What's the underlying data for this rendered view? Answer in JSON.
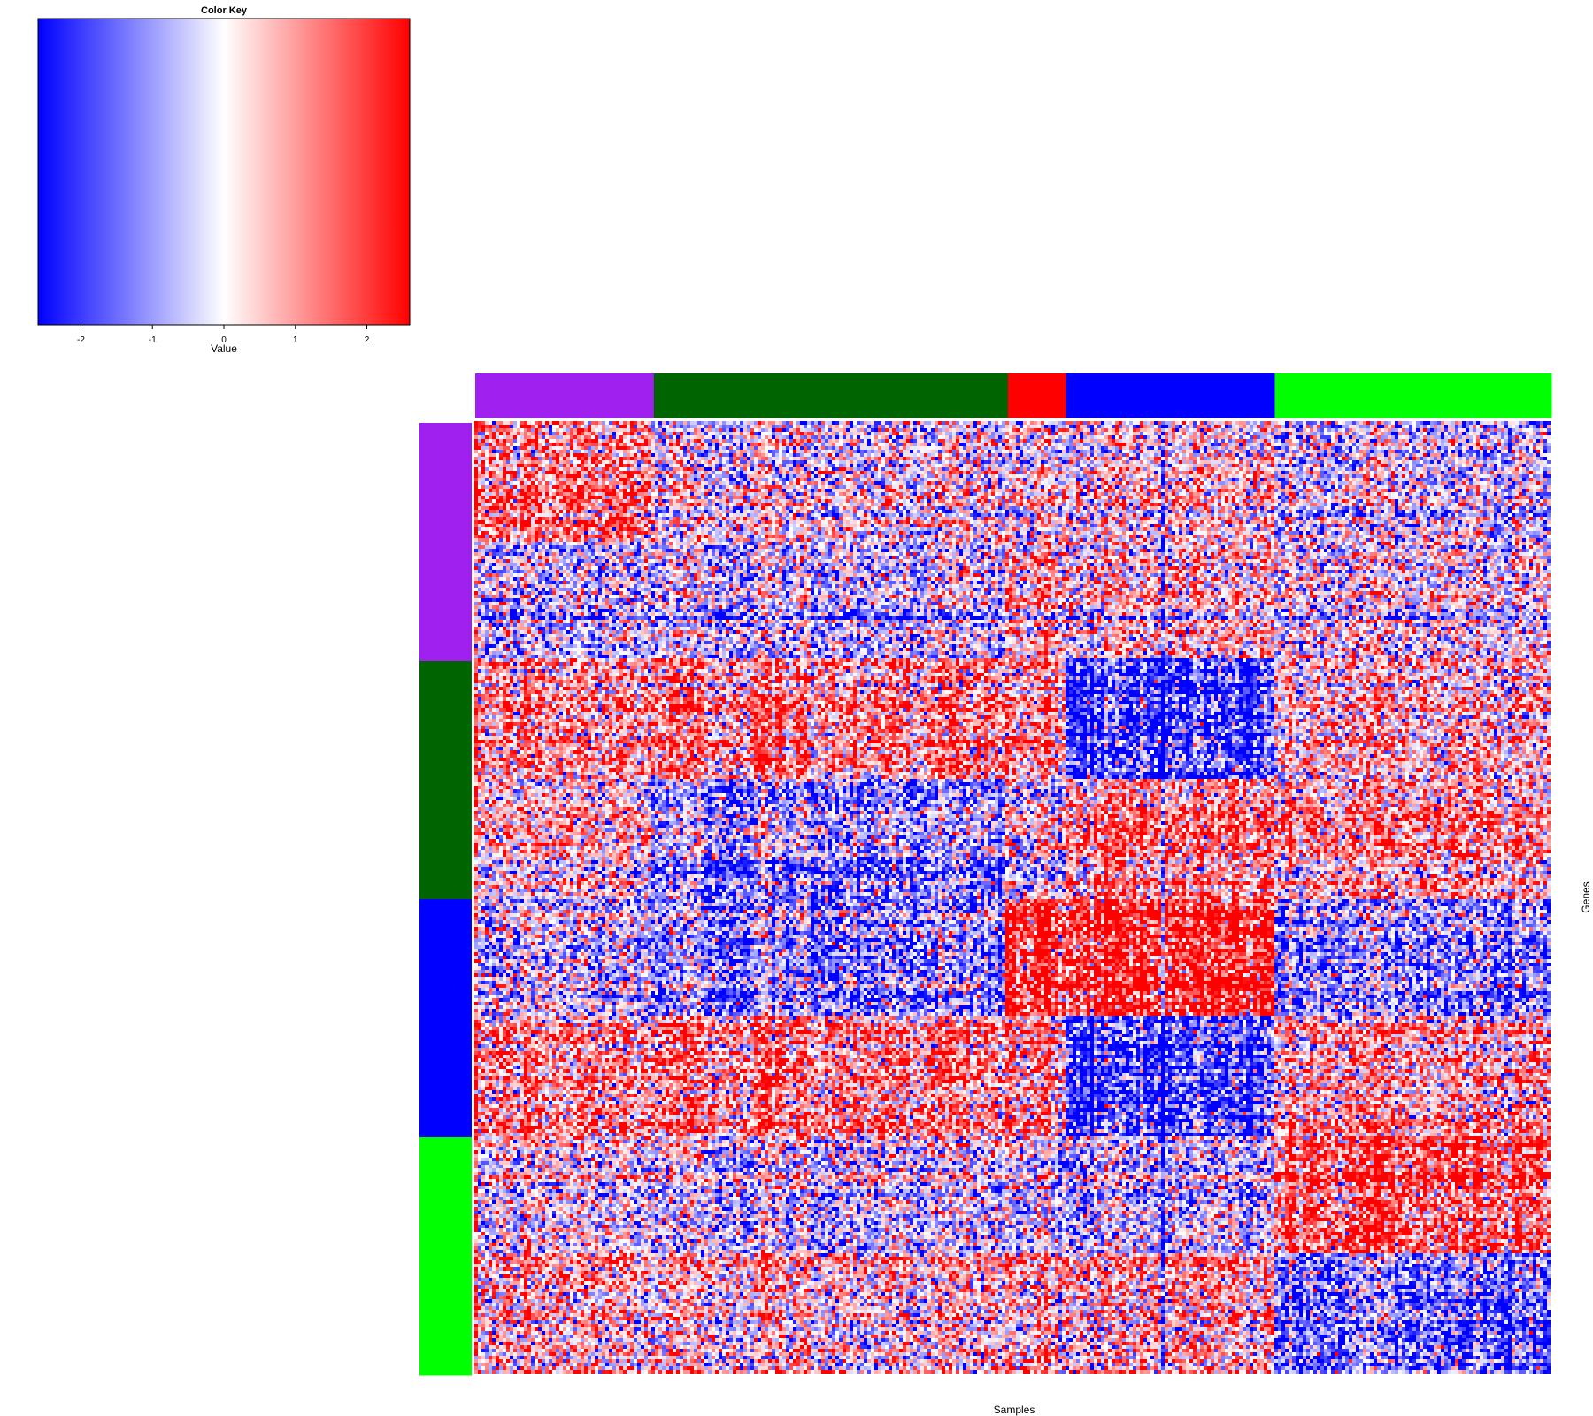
{
  "chart_data": {
    "type": "heatmap",
    "xlabel": "Samples",
    "ylabel": "Genes",
    "color_key": {
      "title": "Color Key",
      "xlabel": "Value",
      "range": [
        -2.6,
        2.6
      ],
      "ticks": [
        -2,
        -1,
        0,
        1,
        2
      ],
      "tick_labels": [
        "-2",
        "-1",
        "0",
        "1",
        "2"
      ],
      "colors": {
        "low": "#0000ff",
        "mid": "#ffffff",
        "high": "#ff0000"
      }
    },
    "column_groups": [
      {
        "name": "purple",
        "color": "#a020f0",
        "fraction": 0.166
      },
      {
        "name": "darkgreen",
        "color": "#006400",
        "fraction": 0.329
      },
      {
        "name": "red",
        "color": "#ff0000",
        "fraction": 0.054
      },
      {
        "name": "blue",
        "color": "#0000ff",
        "fraction": 0.194
      },
      {
        "name": "green",
        "color": "#00ff00",
        "fraction": 0.257
      }
    ],
    "row_groups": [
      {
        "name": "purple",
        "color": "#a020f0",
        "fraction": 0.25
      },
      {
        "name": "darkgreen",
        "color": "#006400",
        "fraction": 0.25
      },
      {
        "name": "blue",
        "color": "#0000ff",
        "fraction": 0.25
      },
      {
        "name": "green",
        "color": "#00ff00",
        "fraction": 0.25
      }
    ],
    "row_blocks": [
      {
        "fraction": 0.125,
        "mean_by_column_group": [
          0.9,
          0.0,
          0.0,
          0.2,
          -0.3
        ]
      },
      {
        "fraction": 0.125,
        "mean_by_column_group": [
          -0.3,
          -0.2,
          0.5,
          0.4,
          0.1
        ]
      },
      {
        "fraction": 0.125,
        "mean_by_column_group": [
          0.7,
          0.9,
          0.7,
          -1.6,
          0.4
        ]
      },
      {
        "fraction": 0.125,
        "mean_by_column_group": [
          0.2,
          -0.8,
          -0.2,
          0.9,
          0.7
        ]
      },
      {
        "fraction": 0.125,
        "mean_by_column_group": [
          -0.5,
          -0.9,
          1.6,
          1.8,
          -0.9
        ]
      },
      {
        "fraction": 0.125,
        "mean_by_column_group": [
          0.7,
          0.9,
          0.7,
          -1.6,
          0.6
        ]
      },
      {
        "fraction": 0.125,
        "mean_by_column_group": [
          -0.1,
          -0.3,
          -0.5,
          -0.5,
          1.3
        ]
      },
      {
        "fraction": 0.125,
        "mean_by_column_group": [
          0.5,
          0.4,
          0.5,
          0.6,
          -1.0
        ]
      }
    ]
  }
}
